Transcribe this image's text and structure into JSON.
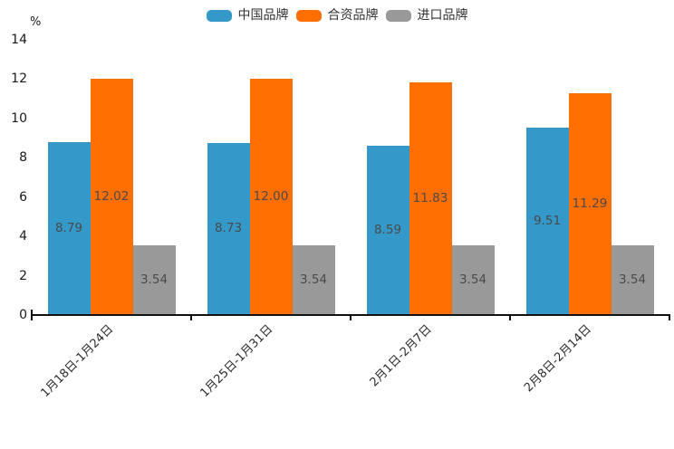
{
  "chart_data": {
    "type": "bar",
    "title": "",
    "ylabel": "%",
    "categories": [
      "1月18日-1月24日",
      "1月25日-1月31日",
      "2月1日-2月7日",
      "2月8日-2月14日"
    ],
    "series": [
      {
        "name": "中国品牌",
        "color": "#3498C8",
        "values": [
          8.79,
          8.73,
          8.59,
          9.51
        ]
      },
      {
        "name": "合资品牌",
        "color": "#FF6E00",
        "values": [
          12.02,
          12.0,
          11.83,
          11.29
        ]
      },
      {
        "name": "进口品牌",
        "color": "#999999",
        "values": [
          3.54,
          3.54,
          3.54,
          3.54
        ]
      }
    ],
    "ylim": [
      0,
      14
    ],
    "yticks": [
      0,
      2,
      4,
      6,
      8,
      10,
      12,
      14
    ],
    "grid": false,
    "legend_position": "top",
    "value_labels": true,
    "value_label_decimals": 2,
    "value_label_color": "#4A4A4A",
    "axis_color": "#111111",
    "tick_label_color": "#1A1A1A"
  }
}
